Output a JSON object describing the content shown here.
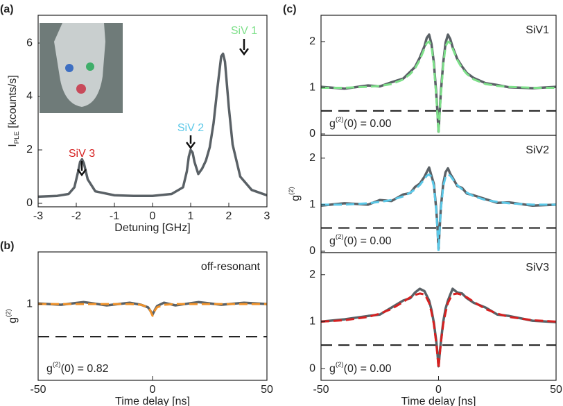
{
  "chart_data": [
    {
      "type": "line",
      "panel_label": "(a)",
      "xlabel": "Detuning [GHz]",
      "ylabel": {
        "text": "I",
        "sub": "PLE",
        "rest": " [kcounts/s]"
      },
      "x": [
        -3,
        -2.5,
        -2.2,
        -2.05,
        -1.95,
        -1.9,
        -1.85,
        -1.8,
        -1.7,
        -1.5,
        -1,
        -0.5,
        0,
        0.5,
        0.8,
        0.9,
        0.95,
        1.0,
        1.05,
        1.1,
        1.2,
        1.3,
        1.4,
        1.5,
        1.6,
        1.7,
        1.8,
        1.85,
        1.9,
        2.0,
        2.1,
        2.3,
        2.6,
        3
      ],
      "series": [
        {
          "color": "#5a6166",
          "style": "solid",
          "values": [
            0.25,
            0.28,
            0.35,
            0.6,
            1.2,
            1.55,
            1.65,
            1.5,
            0.9,
            0.45,
            0.3,
            0.28,
            0.28,
            0.35,
            0.6,
            1.2,
            1.75,
            2.0,
            1.9,
            1.55,
            1.1,
            1.3,
            1.6,
            2.1,
            3.0,
            4.3,
            5.5,
            5.6,
            5.3,
            3.6,
            2.2,
            1.0,
            0.5,
            0.3
          ]
        }
      ],
      "annotations": [
        {
          "text": "SiV 1",
          "color": "#7ee08a"
        },
        {
          "text": "SiV 2",
          "color": "#5bc8e8"
        },
        {
          "text": "SiV 3",
          "color": "#d62020"
        }
      ],
      "xlim": [
        -3,
        3
      ],
      "xticks": [
        -3,
        -2,
        -1,
        0,
        1,
        2,
        3
      ],
      "ylim": [
        -0.13,
        7.04
      ],
      "yticks": [
        0,
        2,
        4,
        6
      ]
    },
    {
      "type": "line",
      "panel_label": "(b)",
      "xlabel": "Time delay [ns]",
      "ylabel": {
        "text": "g",
        "sup": "(2)"
      },
      "label": "off-resonant",
      "stat": {
        "text": "g",
        "sup": "(2)",
        "rest": "(0) = 0.82"
      },
      "reference_line": 0.5,
      "x": [
        -50,
        -40,
        -30,
        -20,
        -10,
        -5,
        -2,
        -1,
        0,
        1,
        2,
        5,
        10,
        20,
        30,
        40,
        50
      ],
      "series": [
        {
          "color": "#5a6166",
          "style": "solid",
          "values": [
            1.01,
            0.99,
            1.03,
            0.98,
            1.02,
            0.99,
            0.95,
            0.9,
            0.84,
            0.91,
            0.97,
            1.02,
            0.98,
            1.03,
            0.99,
            1.02,
            1.0
          ]
        },
        {
          "color": "#f0922a",
          "style": "dashed",
          "values": [
            1,
            1,
            1,
            1,
            1,
            0.99,
            0.95,
            0.9,
            0.82,
            0.9,
            0.95,
            0.99,
            1,
            1,
            1,
            1,
            1
          ]
        }
      ],
      "xlim": [
        -50,
        50
      ],
      "xticks": [
        -50,
        0,
        50
      ],
      "ylim": [
        -0.17,
        1.8
      ],
      "yticks": [
        1
      ]
    },
    {
      "type": "line",
      "panel_label": "(c)",
      "label": "SiV1",
      "stat": {
        "text": "g",
        "sup": "(2)",
        "rest": "(0) = 0.00"
      },
      "reference_line": 0.5,
      "x": [
        -50,
        -40,
        -30,
        -25,
        -20,
        -15,
        -12,
        -10,
        -8,
        -6,
        -5,
        -4,
        -3,
        -2,
        -1,
        -0.5,
        0,
        0.5,
        1,
        2,
        3,
        4,
        5,
        6,
        8,
        10,
        12,
        15,
        20,
        25,
        30,
        40,
        50
      ],
      "series": [
        {
          "color": "#5a6166",
          "style": "solid",
          "values": [
            1.02,
            0.98,
            1.05,
            1.03,
            1.12,
            1.2,
            1.35,
            1.45,
            1.65,
            1.9,
            2.08,
            2.15,
            1.95,
            1.55,
            0.9,
            0.5,
            0.05,
            0.5,
            0.92,
            1.55,
            1.98,
            2.15,
            2.05,
            1.88,
            1.62,
            1.46,
            1.32,
            1.21,
            1.1,
            1.06,
            1.01,
            0.99,
            1.02
          ]
        },
        {
          "color": "#7ee08a",
          "style": "dashed",
          "values": [
            1,
            1,
            1.02,
            1.04,
            1.08,
            1.18,
            1.3,
            1.42,
            1.6,
            1.85,
            1.97,
            2.0,
            1.9,
            1.5,
            0.85,
            0.45,
            0,
            0.45,
            0.85,
            1.5,
            1.9,
            2.0,
            1.97,
            1.85,
            1.6,
            1.42,
            1.3,
            1.18,
            1.08,
            1.04,
            1.02,
            1,
            1
          ]
        }
      ],
      "xlim": [
        -50,
        50
      ],
      "ylim": [
        -0.03,
        2.57
      ],
      "yticks": [
        0,
        1,
        2
      ]
    },
    {
      "type": "line",
      "label": "SiV2",
      "ylabel": {
        "text": "g",
        "sup": "(2)"
      },
      "stat": {
        "text": "g",
        "sup": "(2)",
        "rest": "(0) = 0.00"
      },
      "reference_line": 0.5,
      "x": [
        -50,
        -40,
        -30,
        -25,
        -20,
        -15,
        -12,
        -10,
        -8,
        -6,
        -5,
        -4,
        -3,
        -2,
        -1,
        -0.5,
        0,
        0.5,
        1,
        2,
        3,
        4,
        5,
        6,
        8,
        10,
        12,
        15,
        20,
        25,
        30,
        40,
        50
      ],
      "series": [
        {
          "color": "#5a6166",
          "style": "solid",
          "values": [
            0.98,
            1.03,
            1.0,
            1.1,
            1.08,
            1.22,
            1.25,
            1.38,
            1.45,
            1.6,
            1.7,
            1.8,
            1.62,
            1.45,
            0.92,
            0.55,
            0.05,
            0.52,
            0.95,
            1.45,
            1.7,
            1.78,
            1.66,
            1.58,
            1.4,
            1.36,
            1.24,
            1.2,
            1.12,
            1.04,
            1.05,
            0.98,
            1.0
          ]
        },
        {
          "color": "#5bc8e8",
          "style": "dashed",
          "values": [
            1,
            1,
            1.03,
            1.06,
            1.1,
            1.18,
            1.26,
            1.33,
            1.42,
            1.55,
            1.62,
            1.65,
            1.6,
            1.4,
            0.9,
            0.5,
            0,
            0.5,
            0.9,
            1.4,
            1.6,
            1.65,
            1.62,
            1.55,
            1.42,
            1.33,
            1.26,
            1.18,
            1.1,
            1.06,
            1.03,
            1,
            1
          ]
        }
      ],
      "xlim": [
        -50,
        50
      ],
      "ylim": [
        -0.03,
        2.49
      ],
      "yticks": [
        0,
        1,
        2
      ]
    },
    {
      "type": "line",
      "label": "SiV3",
      "xlabel": "Time delay [ns]",
      "stat": {
        "text": "g",
        "sup": "(2)",
        "rest": "(0) = 0.00"
      },
      "reference_line": 0.5,
      "x": [
        -50,
        -40,
        -30,
        -25,
        -20,
        -15,
        -12,
        -10,
        -8,
        -6,
        -5,
        -4,
        -3,
        -2,
        -1,
        -0.5,
        0,
        0.5,
        1,
        2,
        3,
        4,
        5,
        6,
        8,
        10,
        12,
        15,
        20,
        25,
        30,
        40,
        50
      ],
      "series": [
        {
          "color": "#5a6166",
          "style": "solid",
          "values": [
            1.0,
            1.05,
            1.12,
            1.15,
            1.3,
            1.45,
            1.5,
            1.62,
            1.7,
            1.65,
            1.55,
            1.45,
            1.25,
            0.98,
            0.6,
            0.35,
            0.05,
            0.32,
            0.58,
            1.0,
            1.28,
            1.45,
            1.58,
            1.7,
            1.62,
            1.6,
            1.5,
            1.4,
            1.3,
            1.15,
            1.12,
            1.02,
            0.99
          ]
        },
        {
          "color": "#d62020",
          "style": "dashed",
          "values": [
            1,
            1.03,
            1.1,
            1.17,
            1.27,
            1.42,
            1.52,
            1.57,
            1.6,
            1.58,
            1.5,
            1.4,
            1.2,
            0.95,
            0.55,
            0.3,
            0,
            0.3,
            0.55,
            0.95,
            1.2,
            1.4,
            1.5,
            1.58,
            1.6,
            1.57,
            1.52,
            1.42,
            1.27,
            1.17,
            1.1,
            1.03,
            1
          ]
        }
      ],
      "xlim": [
        -50,
        50
      ],
      "xticks": [
        -50,
        0,
        50
      ],
      "ylim": [
        -0.25,
        2.47
      ],
      "yticks": [
        0,
        1,
        2
      ]
    }
  ]
}
